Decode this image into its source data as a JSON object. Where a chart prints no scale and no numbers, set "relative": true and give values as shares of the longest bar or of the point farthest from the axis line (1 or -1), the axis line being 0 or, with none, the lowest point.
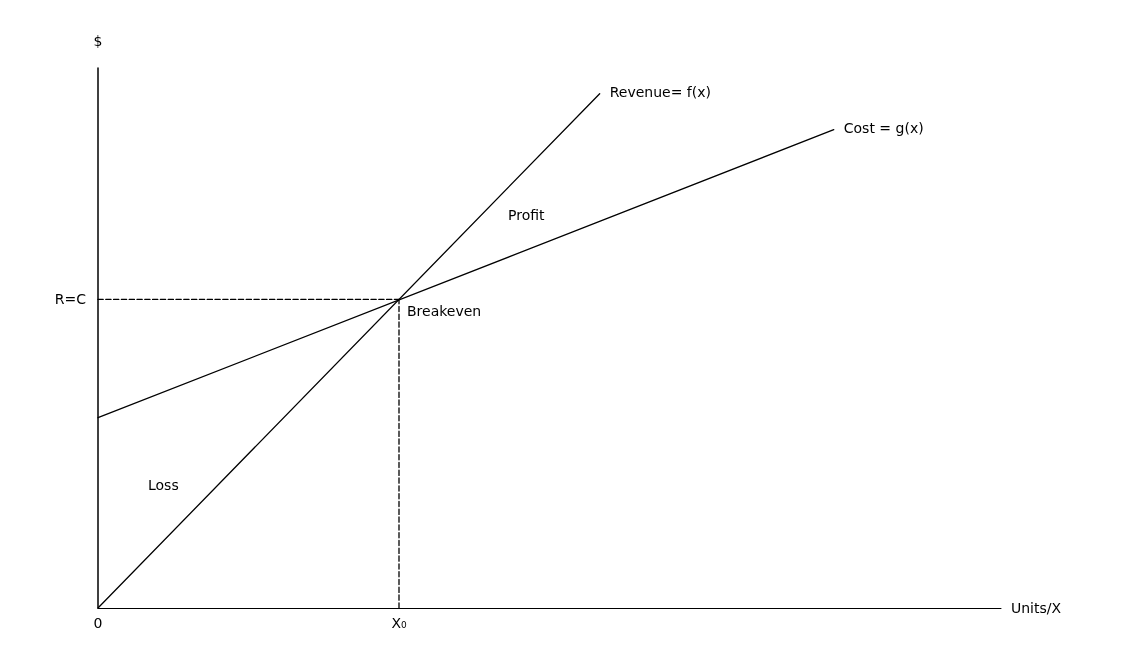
{
  "chart_data": {
    "type": "line",
    "relative": true,
    "xlabel": "Units/X",
    "ylabel": "$",
    "categories": [
      "0",
      null,
      null,
      null,
      null,
      null,
      null,
      null,
      null,
      "X₀",
      null,
      null,
      null,
      null,
      null,
      null,
      null,
      null,
      null,
      null,
      null,
      null,
      null,
      null,
      null,
      null,
      null,
      null
    ],
    "series": [
      {
        "name": "Revenue= f(x)",
        "color": "#000000",
        "values": [
          0,
          null,
          null,
          null,
          null,
          null,
          null,
          null,
          null,
          null,
          null,
          null,
          null,
          null,
          null,
          1,
          null,
          null,
          null,
          null,
          null,
          null,
          null,
          null,
          null,
          null,
          null,
          null
        ]
      },
      {
        "name": "Cost = g(x)",
        "color": "#000000",
        "values": [
          0.37,
          null,
          null,
          null,
          null,
          null,
          null,
          null,
          null,
          null,
          null,
          null,
          null,
          null,
          null,
          null,
          null,
          null,
          null,
          null,
          null,
          null,
          0.93,
          null,
          null,
          null,
          null,
          null
        ]
      },
      {
        "color": "#000000",
        "line_style": "dashed",
        "x": [
          "0",
          "X₀"
        ],
        "values": [
          0.6,
          0.6
        ]
      },
      {
        "color": "#000000",
        "line_style": "dashed",
        "x": [
          "X₀",
          "X₀"
        ],
        "values": [
          0,
          0.6
        ]
      }
    ],
    "annotations": [
      {
        "text": "R=C",
        "x": "0",
        "y": 0.6
      },
      {
        "text": "Breakeven",
        "x": "X₀",
        "y": 0.6
      },
      "Profit",
      "Loss"
    ],
    "grid": false,
    "legend": false,
    "marker": "none",
    "line_style": "solid"
  }
}
